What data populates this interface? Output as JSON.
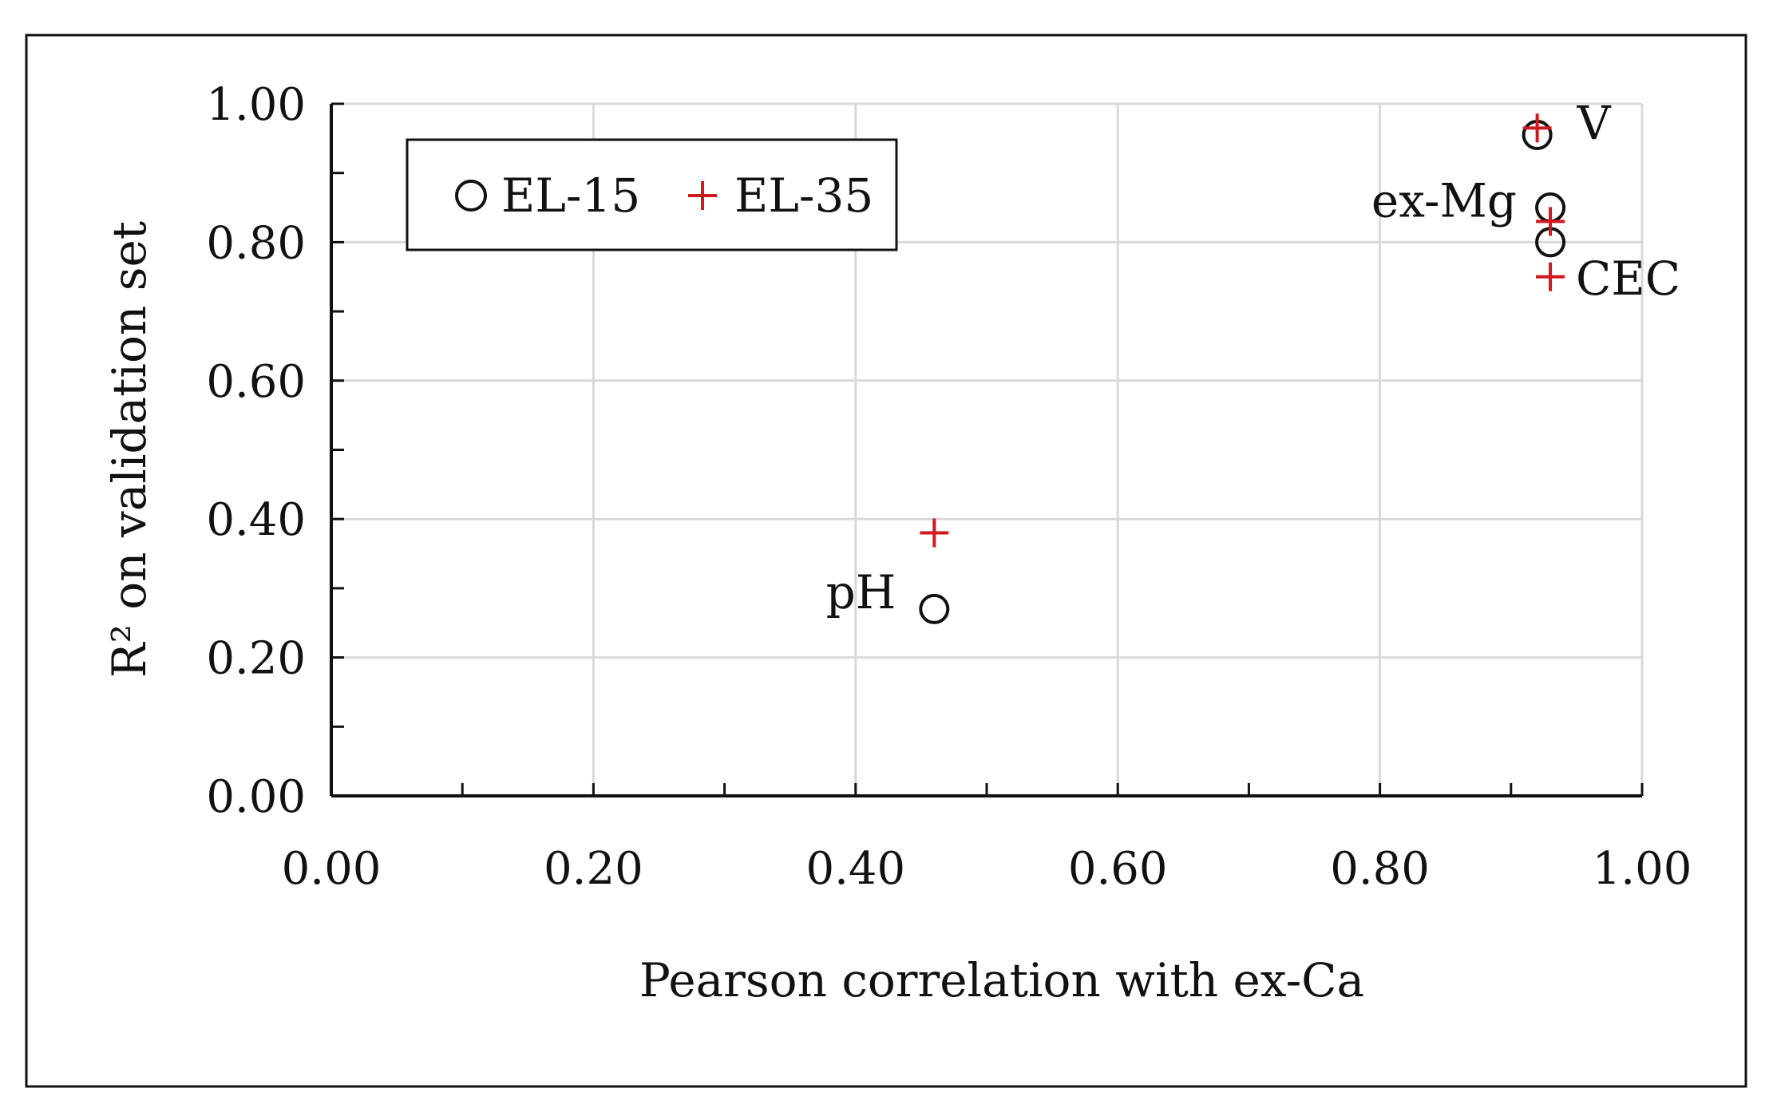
{
  "chart_data": {
    "type": "scatter",
    "xlabel": "Pearson correlation with ex-Ca",
    "ylabel": "R² on validation set",
    "xlim": [
      0,
      1
    ],
    "ylim": [
      0,
      1
    ],
    "x_ticks": [
      "0.00",
      "0.20",
      "0.40",
      "0.60",
      "0.80",
      "1.00"
    ],
    "y_ticks": [
      "0.00",
      "0.20",
      "0.40",
      "0.60",
      "0.80",
      "1.00"
    ],
    "grid": true,
    "legend_position": "top-left",
    "series": [
      {
        "name": "EL-15",
        "marker": "circle",
        "color": "#111111",
        "points": [
          {
            "x": 0.46,
            "y": 0.27
          },
          {
            "x": 0.92,
            "y": 0.955
          },
          {
            "x": 0.93,
            "y": 0.85
          },
          {
            "x": 0.93,
            "y": 0.8
          }
        ]
      },
      {
        "name": "EL-35",
        "marker": "plus",
        "color": "#d0191f",
        "points": [
          {
            "x": 0.46,
            "y": 0.38
          },
          {
            "x": 0.92,
            "y": 0.965
          },
          {
            "x": 0.93,
            "y": 0.83
          },
          {
            "x": 0.93,
            "y": 0.75
          }
        ]
      }
    ],
    "annotations": [
      {
        "text": "pH",
        "x": 0.46,
        "y": 0.3,
        "anchor": "left"
      },
      {
        "text": "V",
        "x": 0.92,
        "y": 0.96,
        "anchor": "right"
      },
      {
        "text": "ex-Mg",
        "x": 0.93,
        "y": 0.86,
        "anchor": "left"
      },
      {
        "text": "CEC",
        "x": 0.93,
        "y": 0.75,
        "anchor": "right"
      }
    ]
  }
}
